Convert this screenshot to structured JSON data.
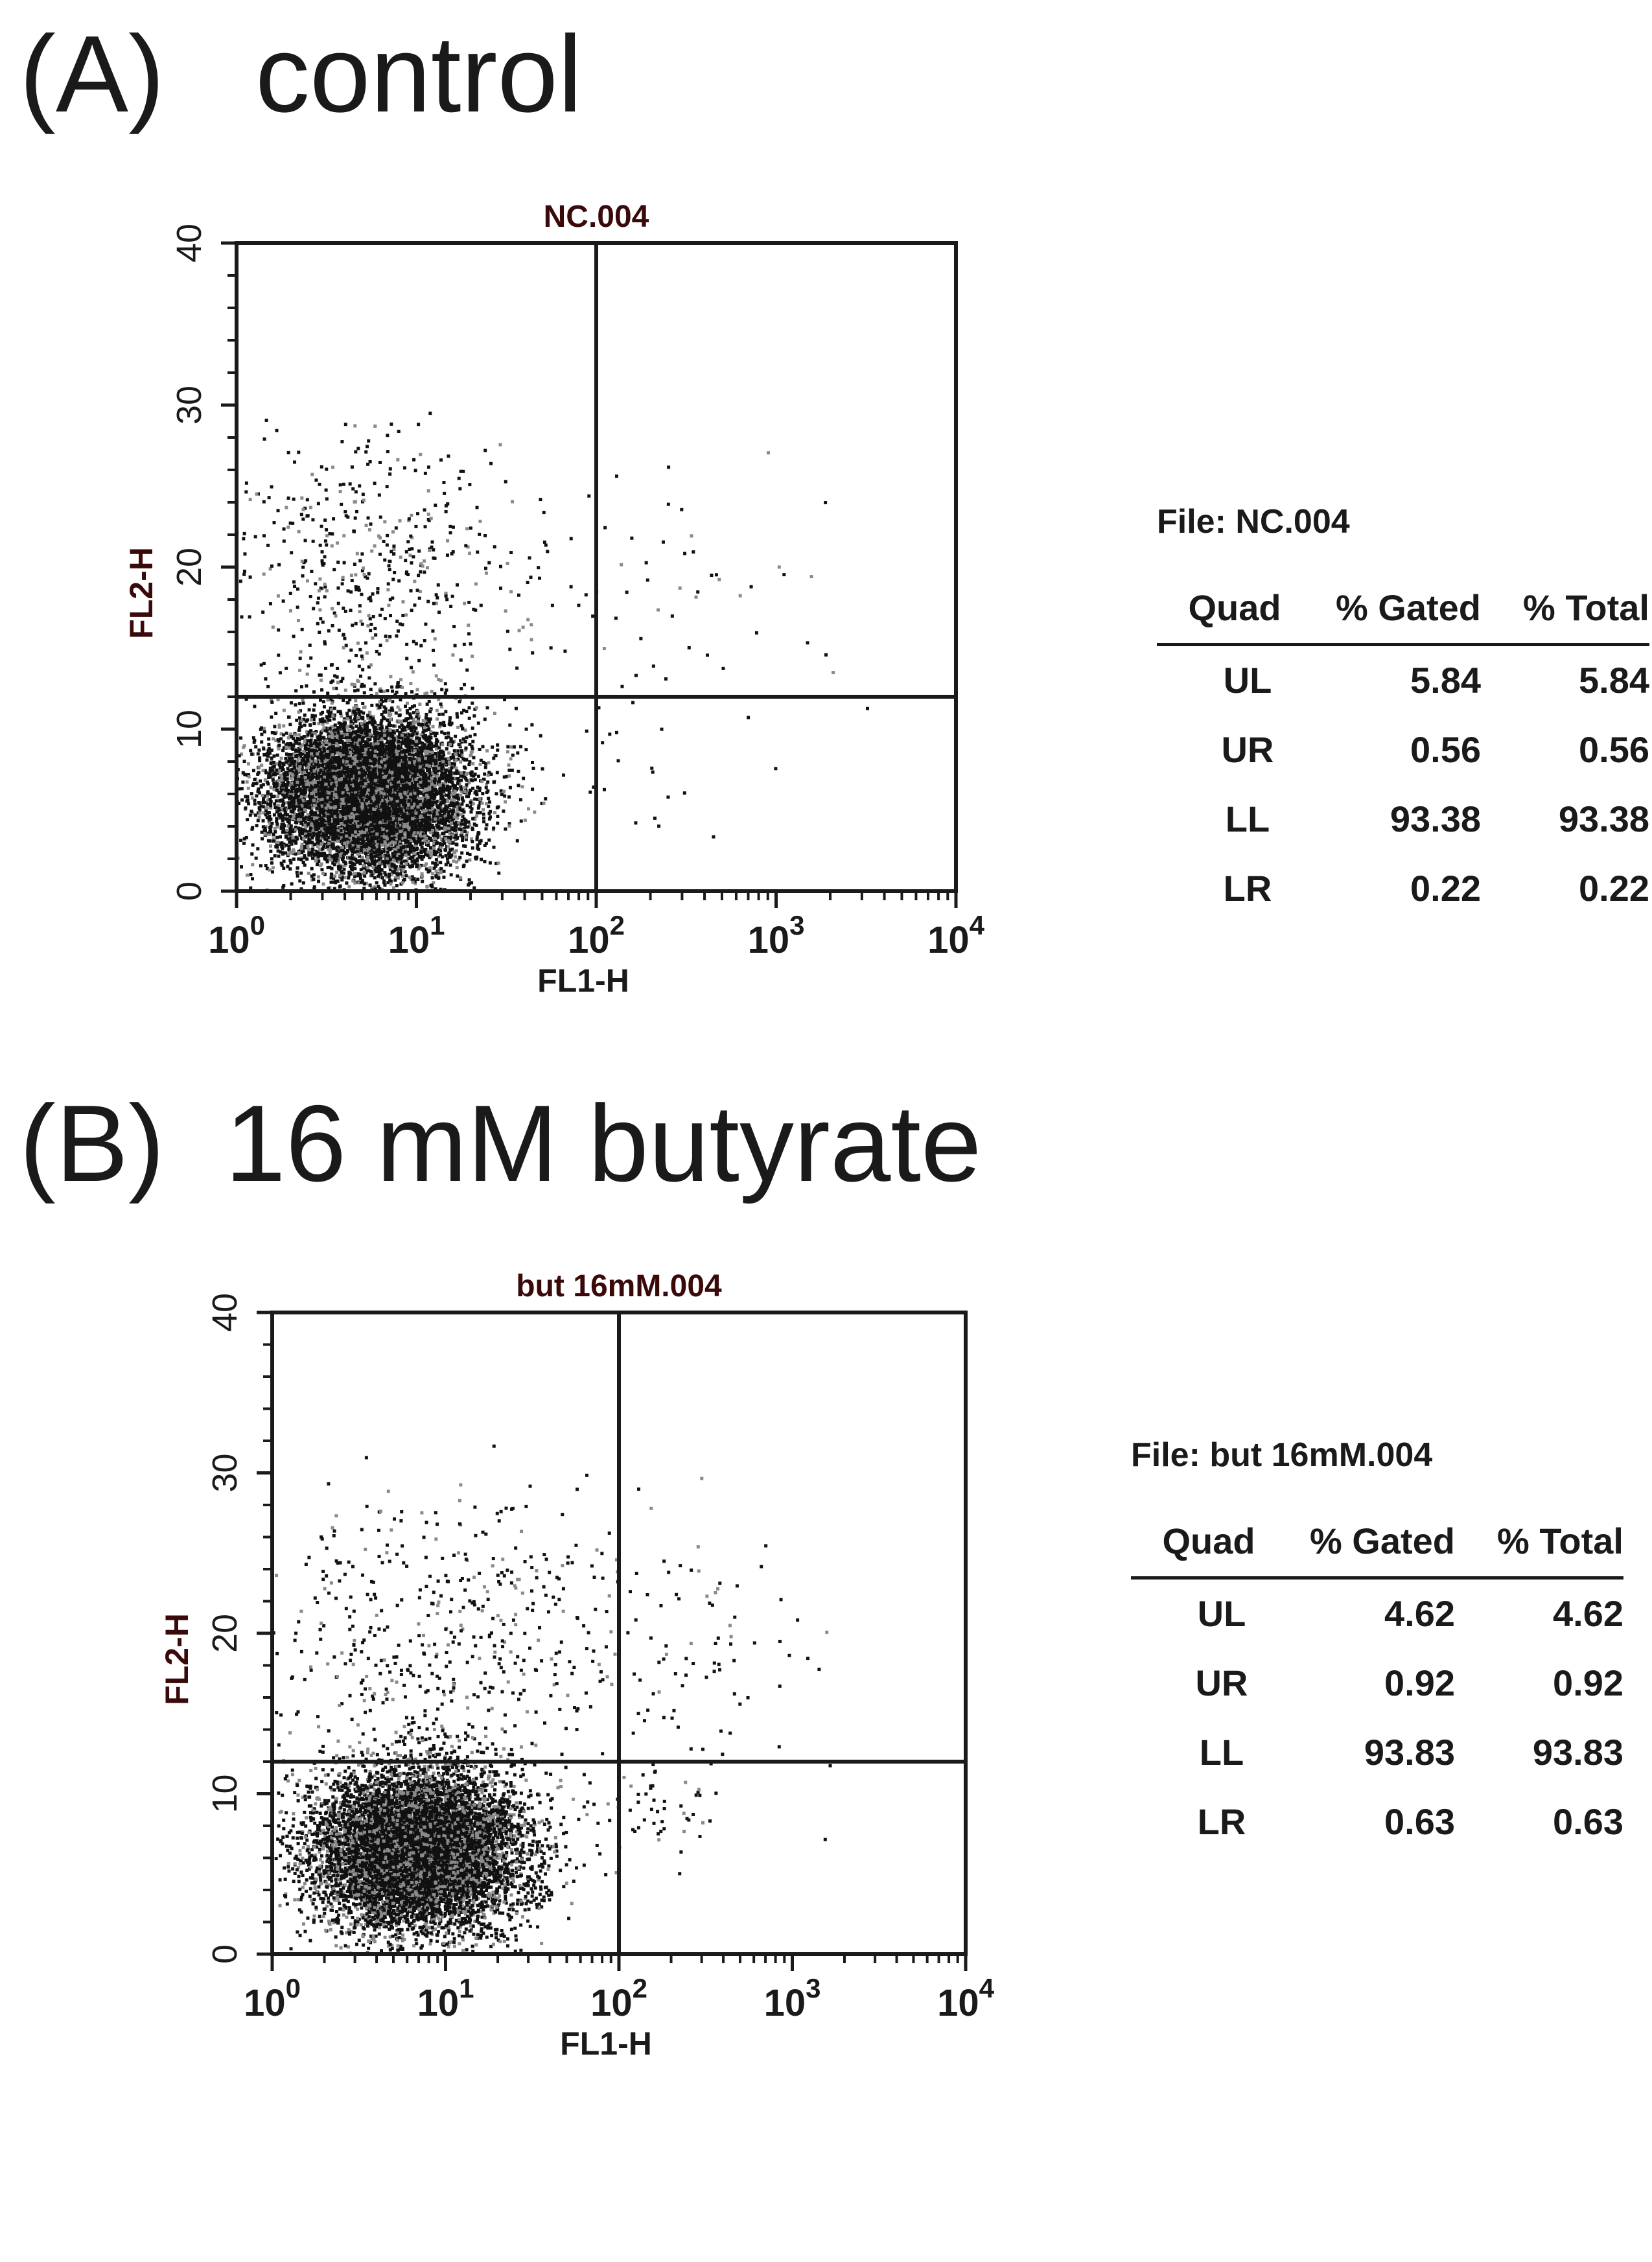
{
  "panels": [
    {
      "label": "(A)   control",
      "plot_title": "NC.004",
      "file_label": "File: NC.004",
      "table": {
        "headers": [
          "Quad",
          "% Gated",
          "% Total"
        ],
        "rows": [
          {
            "quad": "UL",
            "gated": "5.84",
            "total": "5.84"
          },
          {
            "quad": "UR",
            "gated": "0.56",
            "total": "0.56"
          },
          {
            "quad": "LL",
            "gated": "93.38",
            "total": "93.38"
          },
          {
            "quad": "LR",
            "gated": "0.22",
            "total": "0.22"
          }
        ]
      }
    },
    {
      "label": "(B)  16 mM butyrate",
      "plot_title": "but 16mM.004",
      "file_label": "File: but 16mM.004",
      "table": {
        "headers": [
          "Quad",
          "% Gated",
          "% Total"
        ],
        "rows": [
          {
            "quad": "UL",
            "gated": "4.62",
            "total": "4.62"
          },
          {
            "quad": "UR",
            "gated": "0.92",
            "total": "0.92"
          },
          {
            "quad": "LL",
            "gated": "93.83",
            "total": "93.83"
          },
          {
            "quad": "LR",
            "gated": "0.63",
            "total": "0.63"
          }
        ]
      }
    }
  ],
  "chart_data": [
    {
      "type": "scatter",
      "title": "NC.004",
      "xlabel": "FL1-H",
      "ylabel": "FL2-H",
      "x_scale": "log",
      "xlim": [
        1,
        10000
      ],
      "x_ticks": [
        "10",
        "10",
        "10",
        "10",
        "10"
      ],
      "x_tick_exponents": [
        "0",
        "1",
        "2",
        "3",
        "4"
      ],
      "ylim": [
        0,
        40
      ],
      "y_ticks": [
        "0",
        "10",
        "20",
        "30",
        "40"
      ],
      "y_tick_glyphs": [
        "0",
        "0",
        "0",
        "0",
        "0"
      ],
      "quadrant_gate": {
        "x": 100,
        "y": 12
      },
      "point_color": "#111111",
      "clusters": [
        {
          "region": "LL",
          "cx": 5.5,
          "cy": 6.0,
          "sx_log": 0.28,
          "sy": 2.5,
          "count": 9000
        },
        {
          "region": "UL",
          "cx": 6,
          "cy": 20,
          "sx_log": 0.45,
          "sy": 4,
          "count": 520
        },
        {
          "region": "UR",
          "cx": 300,
          "cy": 19,
          "sx_log": 0.4,
          "sy": 4.5,
          "count": 50
        },
        {
          "region": "LR",
          "cx": 160,
          "cy": 8,
          "sx_log": 0.2,
          "sy": 2.5,
          "count": 20
        }
      ]
    },
    {
      "type": "scatter",
      "title": "but 16mM.004",
      "xlabel": "FL1-H",
      "ylabel": "FL2-H",
      "x_scale": "log",
      "xlim": [
        1,
        10000
      ],
      "x_ticks": [
        "10",
        "10",
        "10",
        "10",
        "10"
      ],
      "x_tick_exponents": [
        "0",
        "1",
        "2",
        "3",
        "4"
      ],
      "ylim": [
        0,
        40
      ],
      "y_ticks": [
        "0",
        "10",
        "20",
        "30",
        "40"
      ],
      "y_tick_glyphs": [
        "0",
        "0",
        "0",
        "0",
        "0"
      ],
      "quadrant_gate": {
        "x": 100,
        "y": 12
      },
      "point_color": "#111111",
      "clusters": [
        {
          "region": "LL",
          "cx": 7,
          "cy": 6.5,
          "sx_log": 0.3,
          "sy": 2.5,
          "count": 9000
        },
        {
          "region": "UL",
          "cx": 10,
          "cy": 20,
          "sx_log": 0.5,
          "sy": 4,
          "count": 460
        },
        {
          "region": "UR",
          "cx": 300,
          "cy": 19,
          "sx_log": 0.4,
          "sy": 4.5,
          "count": 90
        },
        {
          "region": "LR",
          "cx": 150,
          "cy": 9,
          "sx_log": 0.2,
          "sy": 2.2,
          "count": 60
        }
      ]
    }
  ]
}
